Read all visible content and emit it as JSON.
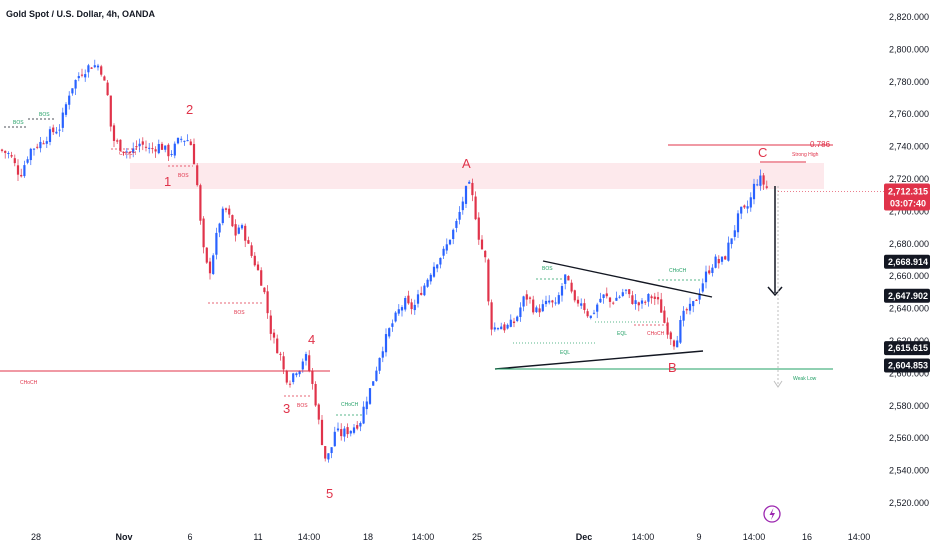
{
  "chart_data": {
    "type": "candlestick",
    "title": "Gold Spot / U.S. Dollar, 4h, OANDA",
    "ylim": [
      2512,
      2828
    ],
    "y_ticks": [
      "2,820.000",
      "2,800.000",
      "2,780.000",
      "2,760.000",
      "2,740.000",
      "2,720.000",
      "2,700.000",
      "2,680.000",
      "2,660.000",
      "2,640.000",
      "2,620.000",
      "2,600.000",
      "2,580.000",
      "2,560.000",
      "2,540.000",
      "2,520.000"
    ],
    "x_ticks": [
      "28",
      "Nov",
      "6",
      "11",
      "14:00",
      "18",
      "14:00",
      "25",
      "Dec",
      "14:00",
      "9",
      "14:00",
      "16",
      "14:00"
    ],
    "price_tags": [
      {
        "value": "2,712.315",
        "countdown": "03:07:40",
        "kind": "current"
      },
      {
        "value": "2,668.914",
        "kind": "level"
      },
      {
        "value": "2,647.902",
        "kind": "level"
      },
      {
        "value": "2,615.615",
        "kind": "level"
      },
      {
        "value": "2,604.853",
        "kind": "level"
      }
    ],
    "close_path": [
      [
        0,
        2738
      ],
      [
        10,
        2735
      ],
      [
        20,
        2722
      ],
      [
        30,
        2738
      ],
      [
        40,
        2742
      ],
      [
        50,
        2748
      ],
      [
        60,
        2752
      ],
      [
        70,
        2775
      ],
      [
        80,
        2785
      ],
      [
        90,
        2790
      ],
      [
        100,
        2790
      ],
      [
        108,
        2770
      ],
      [
        112,
        2745
      ],
      [
        120,
        2740
      ],
      [
        130,
        2736
      ],
      [
        140,
        2742
      ],
      [
        150,
        2738
      ],
      [
        160,
        2741
      ],
      [
        170,
        2735
      ],
      [
        180,
        2745
      ],
      [
        190,
        2744
      ],
      [
        196,
        2725
      ],
      [
        200,
        2695
      ],
      [
        205,
        2668
      ],
      [
        210,
        2664
      ],
      [
        215,
        2680
      ],
      [
        220,
        2695
      ],
      [
        225,
        2702
      ],
      [
        230,
        2695
      ],
      [
        235,
        2685
      ],
      [
        240,
        2692
      ],
      [
        245,
        2685
      ],
      [
        250,
        2675
      ],
      [
        255,
        2668
      ],
      [
        260,
        2660
      ],
      [
        265,
        2648
      ],
      [
        270,
        2628
      ],
      [
        275,
        2618
      ],
      [
        280,
        2612
      ],
      [
        285,
        2598
      ],
      [
        290,
        2596
      ],
      [
        295,
        2602
      ],
      [
        300,
        2604
      ],
      [
        305,
        2612
      ],
      [
        310,
        2600
      ],
      [
        315,
        2585
      ],
      [
        320,
        2565
      ],
      [
        325,
        2548
      ],
      [
        330,
        2550
      ],
      [
        335,
        2565
      ],
      [
        340,
        2562
      ],
      [
        345,
        2564
      ],
      [
        350,
        2565
      ],
      [
        355,
        2568
      ],
      [
        360,
        2570
      ],
      [
        365,
        2582
      ],
      [
        370,
        2590
      ],
      [
        375,
        2600
      ],
      [
        380,
        2612
      ],
      [
        385,
        2620
      ],
      [
        390,
        2628
      ],
      [
        395,
        2634
      ],
      [
        400,
        2640
      ],
      [
        405,
        2644
      ],
      [
        410,
        2640
      ],
      [
        415,
        2642
      ],
      [
        420,
        2650
      ],
      [
        425,
        2655
      ],
      [
        430,
        2662
      ],
      [
        435,
        2668
      ],
      [
        440,
        2672
      ],
      [
        445,
        2676
      ],
      [
        450,
        2684
      ],
      [
        455,
        2690
      ],
      [
        460,
        2700
      ],
      [
        465,
        2712
      ],
      [
        470,
        2716
      ],
      [
        475,
        2700
      ],
      [
        480,
        2680
      ],
      [
        485,
        2672
      ],
      [
        490,
        2630
      ],
      [
        495,
        2628
      ],
      [
        500,
        2630
      ],
      [
        505,
        2628
      ],
      [
        510,
        2630
      ],
      [
        515,
        2632
      ],
      [
        520,
        2640
      ],
      [
        525,
        2648
      ],
      [
        530,
        2645
      ],
      [
        535,
        2638
      ],
      [
        540,
        2640
      ],
      [
        545,
        2642
      ],
      [
        550,
        2645
      ],
      [
        555,
        2640
      ],
      [
        560,
        2650
      ],
      [
        565,
        2660
      ],
      [
        570,
        2652
      ],
      [
        575,
        2642
      ],
      [
        580,
        2646
      ],
      [
        585,
        2640
      ],
      [
        590,
        2634
      ],
      [
        595,
        2640
      ],
      [
        600,
        2646
      ],
      [
        605,
        2648
      ],
      [
        610,
        2644
      ],
      [
        615,
        2646
      ],
      [
        620,
        2648
      ],
      [
        625,
        2652
      ],
      [
        630,
        2646
      ],
      [
        635,
        2644
      ],
      [
        640,
        2642
      ],
      [
        645,
        2644
      ],
      [
        650,
        2648
      ],
      [
        655,
        2646
      ],
      [
        660,
        2642
      ],
      [
        665,
        2630
      ],
      [
        670,
        2624
      ],
      [
        675,
        2618
      ],
      [
        680,
        2630
      ],
      [
        685,
        2638
      ],
      [
        690,
        2640
      ],
      [
        695,
        2644
      ],
      [
        700,
        2652
      ],
      [
        705,
        2660
      ],
      [
        710,
        2665
      ],
      [
        715,
        2670
      ],
      [
        720,
        2668
      ],
      [
        725,
        2672
      ],
      [
        730,
        2682
      ],
      [
        735,
        2690
      ],
      [
        740,
        2700
      ],
      [
        745,
        2700
      ],
      [
        750,
        2706
      ],
      [
        755,
        2718
      ],
      [
        760,
        2720
      ],
      [
        765,
        2716
      ],
      [
        770,
        2712
      ]
    ],
    "wave_labels": [
      "1",
      "2",
      "3",
      "4",
      "5",
      "A",
      "B",
      "C"
    ],
    "annotations": {
      "bos": "BOS",
      "choch": "CHoCH",
      "eql": "EQL",
      "choch_level_label": "CHoCH",
      "fib_label": "0.786",
      "strong_high": "Strong High",
      "weak_low": "Weak Low"
    },
    "colors": {
      "up": "#2962ff",
      "down": "#e0334a",
      "level_red": "#e0334a",
      "level_green": "#22a066",
      "zone_fill": "#fde3e6",
      "label_dark": "#131722"
    }
  }
}
